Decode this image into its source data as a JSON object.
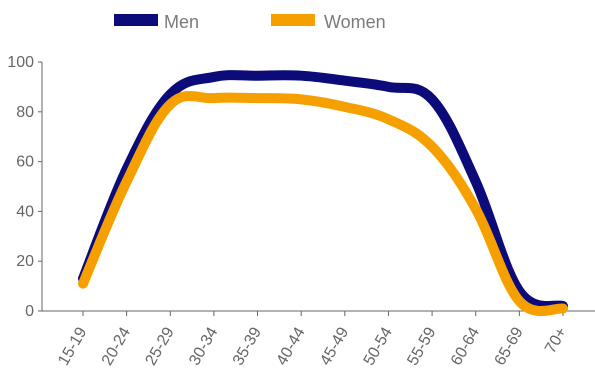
{
  "chart_data": {
    "type": "line",
    "title": "",
    "xlabel": "",
    "ylabel": "",
    "categories": [
      "15-19",
      "20-24",
      "25-29",
      "30-34",
      "35-39",
      "40-44",
      "45-49",
      "50-54",
      "55-59",
      "60-64",
      "65-69",
      "70+"
    ],
    "ylim": [
      0,
      100
    ],
    "yticks": [
      0,
      20,
      40,
      60,
      80,
      100
    ],
    "grid": false,
    "legend_position": "top",
    "series": [
      {
        "name": "Men",
        "color": "#0b0b7a",
        "values": [
          13,
          57,
          87,
          94,
          94.5,
          94.5,
          92.5,
          90,
          85,
          52,
          8,
          2
        ]
      },
      {
        "name": "Women",
        "color": "#f6a000",
        "values": [
          11,
          52,
          83,
          85.5,
          85.5,
          85,
          82,
          77,
          66,
          41,
          4,
          1
        ]
      }
    ]
  }
}
